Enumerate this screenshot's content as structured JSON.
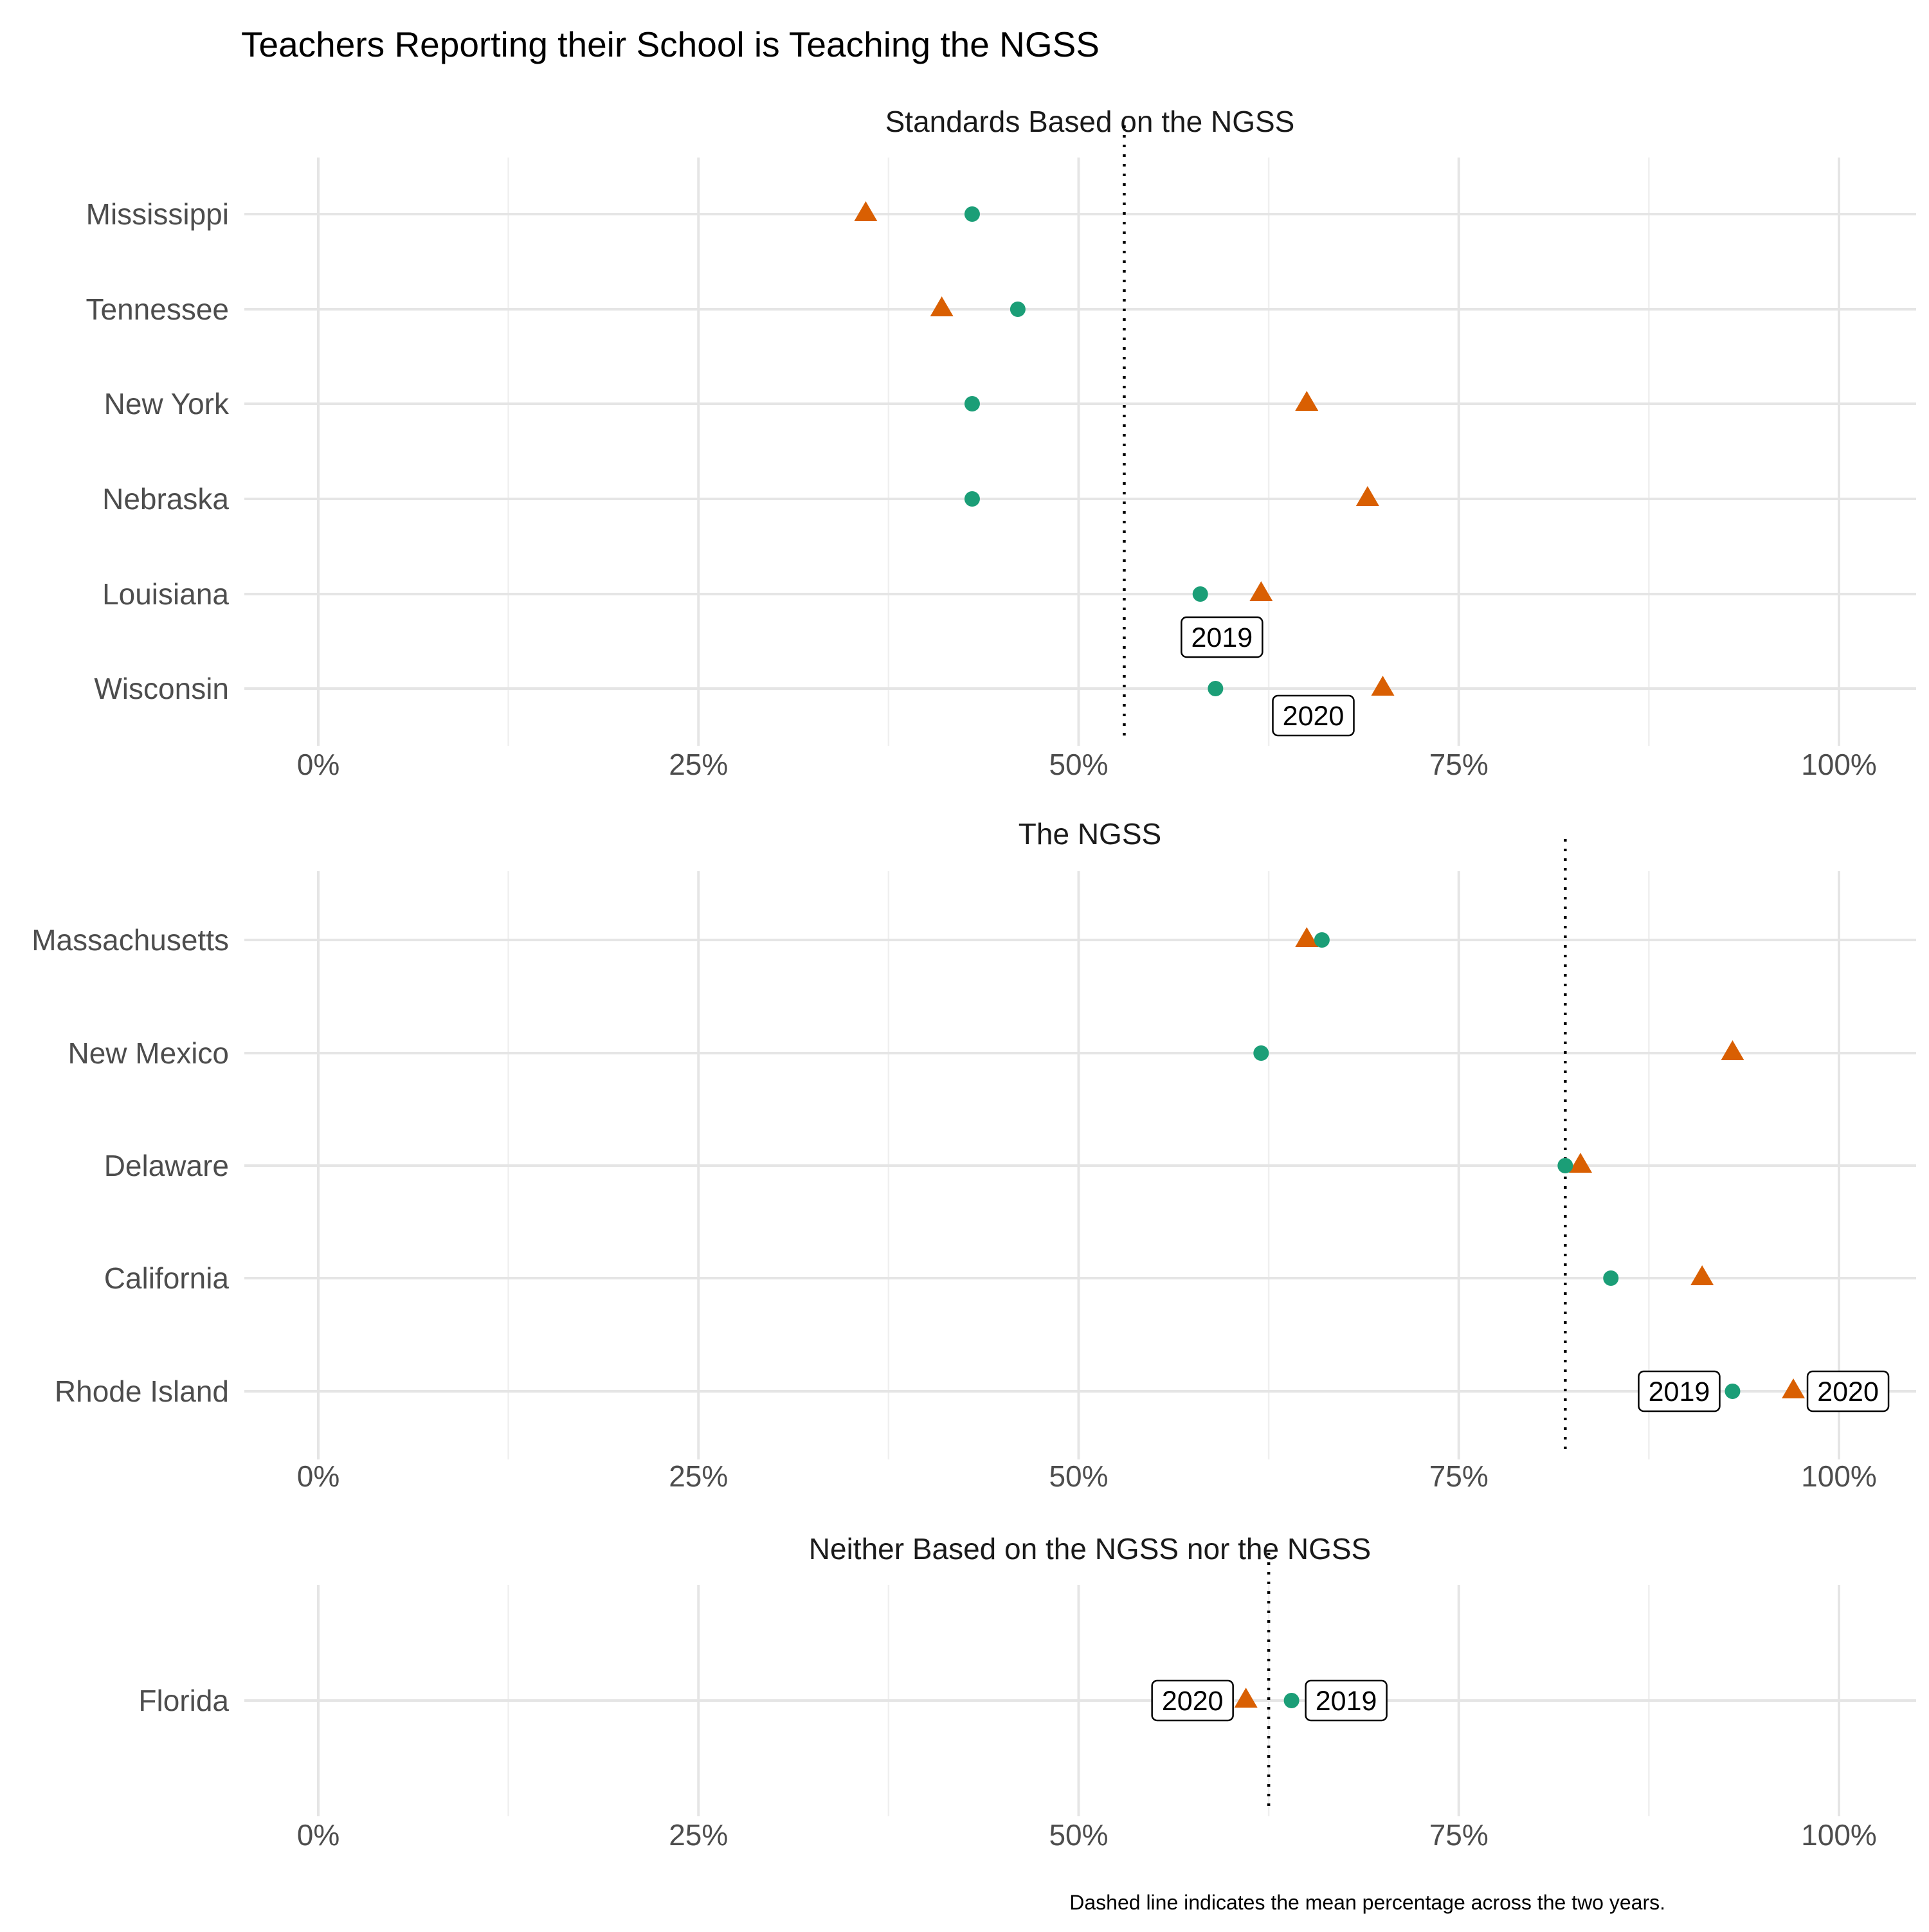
{
  "chart_data": {
    "type": "scatter",
    "title": "Teachers Reporting their School is Teaching the NGSS",
    "caption": "Dashed line indicates the mean percentage across the two years.",
    "x_ticks": [
      "0%",
      "25%",
      "50%",
      "75%",
      "100%"
    ],
    "xlim": [
      0,
      1
    ],
    "grid": true,
    "legend": "none",
    "series_colors": {
      "2019": "#1b9e77",
      "2020": "#d95f02"
    },
    "panels": [
      {
        "title": "Standards Based on the NGSS",
        "mean": 0.53,
        "states": [
          "Mississippi",
          "Tennessee",
          "New York",
          "Nebraska",
          "Louisiana",
          "Wisconsin"
        ],
        "y2019": [
          0.43,
          0.46,
          0.43,
          0.43,
          0.58,
          0.59
        ],
        "y2020": [
          0.36,
          0.41,
          0.65,
          0.69,
          0.62,
          0.7
        ],
        "labels": [
          {
            "text": "2019",
            "state": "Wisconsin",
            "placement": "above"
          },
          {
            "text": "2020",
            "state": "Wisconsin",
            "placement": "below-left"
          }
        ]
      },
      {
        "title": "The NGSS",
        "mean": 0.82,
        "states": [
          "Massachusetts",
          "New Mexico",
          "Delaware",
          "California",
          "Rhode Island"
        ],
        "y2019": [
          0.66,
          0.62,
          0.82,
          0.85,
          0.93
        ],
        "y2020": [
          0.65,
          0.93,
          0.83,
          0.91,
          0.97
        ],
        "labels": [
          {
            "text": "2019",
            "state": "Rhode Island",
            "placement": "left"
          },
          {
            "text": "2020",
            "state": "Rhode Island",
            "placement": "right"
          }
        ]
      },
      {
        "title": "Neither Based on the NGSS nor the NGSS",
        "mean": 0.625,
        "states": [
          "Florida"
        ],
        "y2019": [
          0.64
        ],
        "y2020": [
          0.61
        ],
        "labels": [
          {
            "text": "2019",
            "state": "Florida",
            "placement": "right"
          },
          {
            "text": "2020",
            "state": "Florida",
            "placement": "left"
          }
        ]
      }
    ]
  }
}
